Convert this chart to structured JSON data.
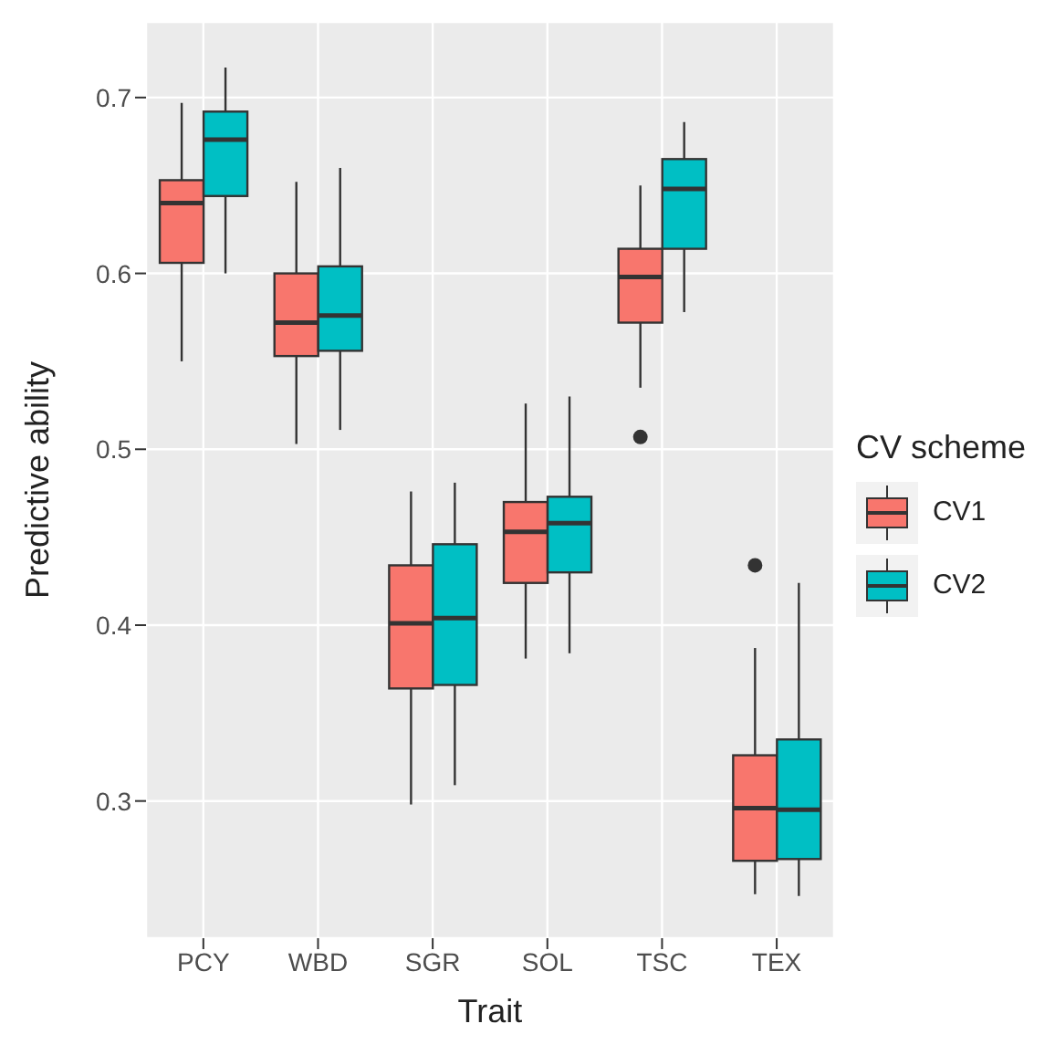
{
  "chart_data": {
    "type": "box",
    "xlabel": "Trait",
    "ylabel": "Predictive ability",
    "legend_title": "CV scheme",
    "legend": "right",
    "grid": true,
    "categories": [
      "PCY",
      "WBD",
      "SGR",
      "SOL",
      "TSC",
      "TEX"
    ],
    "ylim": [
      0.222,
      0.743
    ],
    "yticks": [
      0.3,
      0.4,
      0.5,
      0.6,
      0.7
    ],
    "series": [
      {
        "name": "CV1",
        "color": "#f8766d",
        "boxes": [
          {
            "low": 0.55,
            "q1": 0.606,
            "median": 0.64,
            "q3": 0.653,
            "high": 0.697
          },
          {
            "low": 0.503,
            "q1": 0.553,
            "median": 0.572,
            "q3": 0.6,
            "high": 0.652
          },
          {
            "low": 0.298,
            "q1": 0.364,
            "median": 0.401,
            "q3": 0.434,
            "high": 0.476
          },
          {
            "low": 0.381,
            "q1": 0.424,
            "median": 0.453,
            "q3": 0.47,
            "high": 0.526
          },
          {
            "low": 0.535,
            "q1": 0.572,
            "median": 0.598,
            "q3": 0.614,
            "high": 0.65,
            "outliers": [
              0.507
            ]
          },
          {
            "low": 0.247,
            "q1": 0.266,
            "median": 0.296,
            "q3": 0.326,
            "high": 0.387,
            "outliers": [
              0.434
            ]
          }
        ]
      },
      {
        "name": "CV2",
        "color": "#00bfc4",
        "boxes": [
          {
            "low": 0.6,
            "q1": 0.644,
            "median": 0.676,
            "q3": 0.692,
            "high": 0.717
          },
          {
            "low": 0.511,
            "q1": 0.556,
            "median": 0.576,
            "q3": 0.604,
            "high": 0.66
          },
          {
            "low": 0.309,
            "q1": 0.366,
            "median": 0.404,
            "q3": 0.446,
            "high": 0.481
          },
          {
            "low": 0.384,
            "q1": 0.43,
            "median": 0.458,
            "q3": 0.473,
            "high": 0.53
          },
          {
            "low": 0.578,
            "q1": 0.614,
            "median": 0.648,
            "q3": 0.665,
            "high": 0.686
          },
          {
            "low": 0.246,
            "q1": 0.267,
            "median": 0.295,
            "q3": 0.335,
            "high": 0.424
          }
        ]
      }
    ]
  }
}
